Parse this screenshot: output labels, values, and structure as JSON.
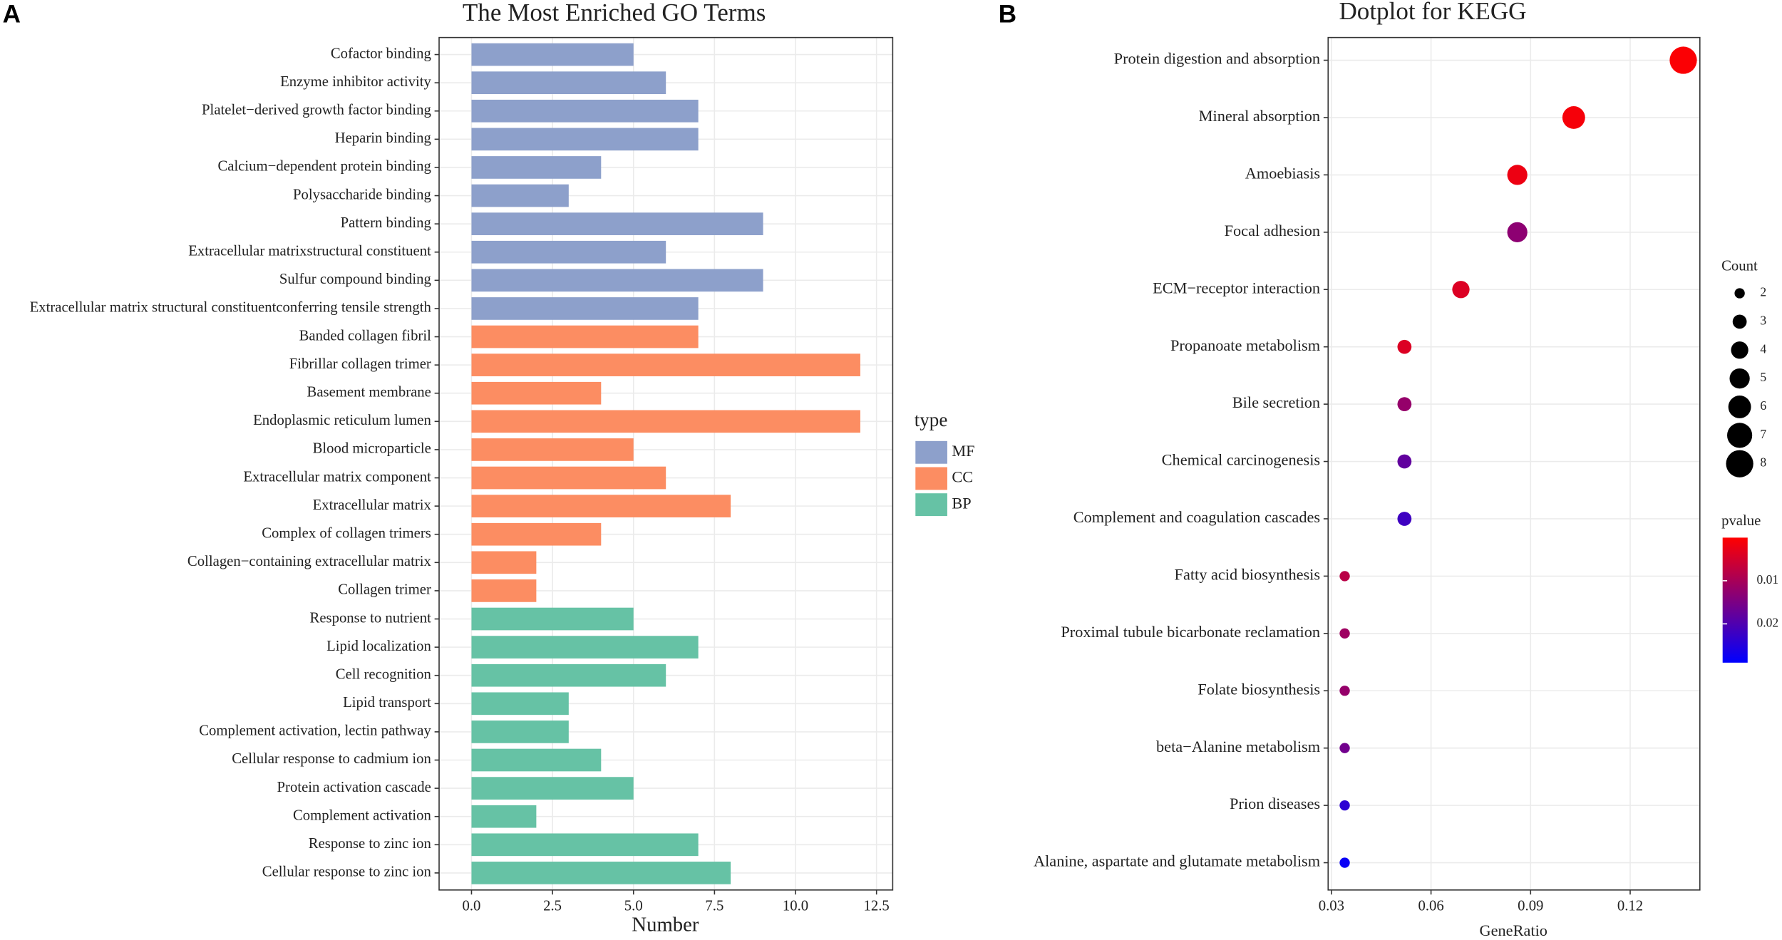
{
  "chart_data": [
    {
      "type": "bar",
      "panel_label": "A",
      "title": "The Most Enriched GO Terms",
      "x_label": "Number",
      "legend_title": "type",
      "categories": [
        "Cofactor binding",
        "Enzyme inhibitor activity",
        "Platelet−derived growth factor binding",
        "Heparin binding",
        "Calcium−dependent protein binding",
        "Polysaccharide binding",
        "Pattern binding",
        "Extracellular matrixstructural constituent",
        "Sulfur compound binding",
        "Extracellular matrix structural constituentconferring tensile strength",
        "Banded collagen fibril",
        "Fibrillar collagen trimer",
        "Basement membrane",
        "Endoplasmic reticulum lumen",
        "Blood microparticle",
        "Extracellular matrix component",
        "Extracellular matrix",
        "Complex of collagen trimers",
        "Collagen−containing extracellular matrix",
        "Collagen trimer",
        "Response to nutrient",
        "Lipid localization",
        "Cell recognition",
        "Lipid transport",
        "Complement activation, lectin pathway",
        "Cellular response to cadmium ion",
        "Protein activation cascade",
        "Complement activation",
        "Response to zinc ion",
        "Cellular response to zinc ion"
      ],
      "series": [
        {
          "name": "MF",
          "color": "#8DA0CB",
          "values": [
            5,
            6,
            7,
            7,
            4,
            3,
            9,
            6,
            9,
            7,
            null,
            null,
            null,
            null,
            null,
            null,
            null,
            null,
            null,
            null,
            null,
            null,
            null,
            null,
            null,
            null,
            null,
            null,
            null,
            null
          ]
        },
        {
          "name": "CC",
          "color": "#FC8D62",
          "values": [
            null,
            null,
            null,
            null,
            null,
            null,
            null,
            null,
            null,
            null,
            7,
            12,
            4,
            12,
            5,
            6,
            8,
            4,
            2,
            2,
            null,
            null,
            null,
            null,
            null,
            null,
            null,
            null,
            null,
            null
          ]
        },
        {
          "name": "BP",
          "color": "#66C2A5",
          "values": [
            null,
            null,
            null,
            null,
            null,
            null,
            null,
            null,
            null,
            null,
            null,
            null,
            null,
            null,
            null,
            null,
            null,
            null,
            null,
            null,
            5,
            7,
            6,
            3,
            3,
            4,
            5,
            2,
            7,
            8
          ]
        }
      ],
      "xlim": [
        -1,
        13
      ],
      "xticks": [
        {
          "value": 0,
          "label": "0.0"
        },
        {
          "value": 2.5,
          "label": "2.5"
        },
        {
          "value": 5,
          "label": "5.0"
        },
        {
          "value": 7.5,
          "label": "7.5"
        },
        {
          "value": 10,
          "label": "10.0"
        },
        {
          "value": 12.5,
          "label": "12.5"
        }
      ],
      "grid": true
    },
    {
      "type": "dot",
      "panel_label": "B",
      "title": "Dotplot for KEGG",
      "x_label": "GeneRatio",
      "categories": [
        "Protein digestion and absorption",
        "Mineral absorption",
        "Amoebiasis",
        "Focal adhesion",
        "ECM−receptor interaction",
        "Propanoate metabolism",
        "Bile secretion",
        "Chemical carcinogenesis",
        "Complement and coagulation cascades",
        "Fatty acid biosynthesis",
        "Proximal tubule bicarbonate reclamation",
        "Folate biosynthesis",
        "beta−Alanine metabolism",
        "Prion diseases",
        "Alanine, aspartate and glutamate metabolism"
      ],
      "x": [
        0.136,
        0.103,
        0.086,
        0.086,
        0.069,
        0.052,
        0.052,
        0.052,
        0.052,
        0.034,
        0.034,
        0.034,
        0.034,
        0.034,
        0.034
      ],
      "counts": [
        8,
        6,
        5,
        5,
        4,
        3,
        3,
        3,
        3,
        2,
        2,
        2,
        2,
        2,
        2
      ],
      "pvalues": [
        0.0005,
        0.001,
        0.002,
        0.013,
        0.004,
        0.004,
        0.012,
        0.018,
        0.022,
        0.008,
        0.011,
        0.012,
        0.016,
        0.024,
        0.028
      ],
      "xlim": [
        0.029,
        0.141
      ],
      "xticks": [
        0.03,
        0.06,
        0.09,
        0.12
      ],
      "grid": true,
      "size_legend_title": "Count",
      "size_ticks": [
        2,
        3,
        4,
        5,
        6,
        7,
        8
      ],
      "color_legend_title": "pvalue",
      "color_lim": [
        0,
        0.029
      ],
      "color_ticks": [
        0.01,
        0.02
      ],
      "colors": [
        "#FF0000",
        "#0000FF"
      ]
    }
  ]
}
